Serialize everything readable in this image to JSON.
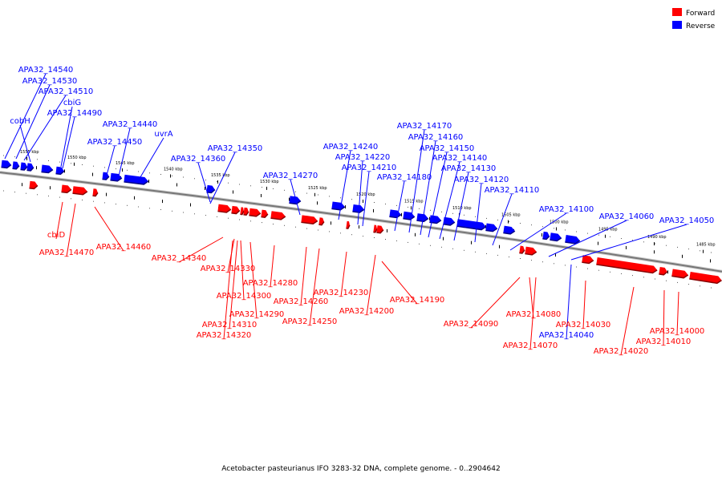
{
  "caption": "Acetobacter pasteurianus IFO 3283-32 DNA, complete genome. - 0..2904642",
  "legend": [
    {
      "label": "Forward",
      "color": "#ff0000"
    },
    {
      "label": "Reverse",
      "color": "#0000ff"
    }
  ],
  "colors": {
    "forward": "#ff0000",
    "reverse": "#0000ff",
    "backbone": "#777777",
    "text": "#000000"
  },
  "ticks": [
    "1555 kbp",
    "1550 kbp",
    "1545 kbp",
    "1540 kbp",
    "1535 kbp",
    "1530 kbp",
    "1525 kbp",
    "1520 kbp",
    "1515 kbp",
    "1510 kbp",
    "1505 kbp",
    "1500 kbp",
    "1495 kbp",
    "1490 kbp",
    "1485 kbp"
  ],
  "reverse_genes": [
    "APA32_14540",
    "APA32_14530",
    "APA32_14510",
    "cbiG",
    "APA32_14490",
    "cobH",
    "APA32_14440",
    "APA32_14450",
    "uvrA",
    "APA32_14350",
    "APA32_14360",
    "APA32_14270",
    "APA32_14240",
    "APA32_14220",
    "APA32_14210",
    "APA32_14180",
    "APA32_14170",
    "APA32_14160",
    "APA32_14150",
    "APA32_14140",
    "APA32_14130",
    "APA32_14120",
    "APA32_14110",
    "APA32_14100",
    "APA32_14060",
    "APA32_14050",
    "APA32_14040"
  ],
  "forward_genes": [
    "cbiD",
    "APA32_14470",
    "APA32_14460",
    "APA32_14340",
    "APA32_14330",
    "APA32_14280",
    "APA32_14300",
    "APA32_14290",
    "APA32_14310",
    "APA32_14320",
    "APA32_14260",
    "APA32_14250",
    "APA32_14230",
    "APA32_14200",
    "APA32_14190",
    "APA32_14090",
    "APA32_14080",
    "APA32_14070",
    "APA32_14030",
    "APA32_14020",
    "APA32_14010",
    "APA32_14000"
  ]
}
